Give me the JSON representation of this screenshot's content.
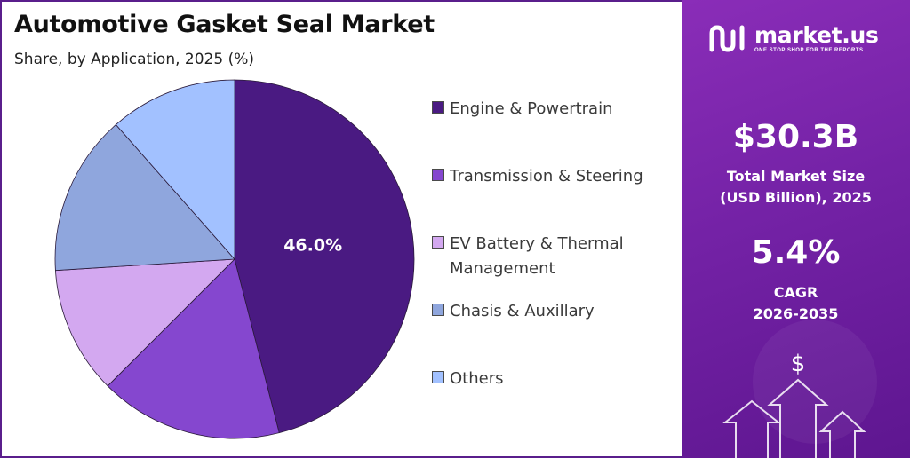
{
  "title": "Automotive Gasket Seal Market",
  "subtitle": "Share, by Application, 2025 (%)",
  "chart_data": {
    "type": "pie",
    "categories": [
      "Engine & Powertrain",
      "Transmission & Steering",
      "EV Battery & Thermal Management",
      "Chasis & Auxillary",
      "Others"
    ],
    "values": [
      46.0,
      16.5,
      11.5,
      14.5,
      11.5
    ],
    "data_labels": [
      "46.0%",
      "",
      "",
      "",
      ""
    ],
    "colors": [
      "#4a1a82",
      "#8547cf",
      "#d3a8f0",
      "#8fa6dd",
      "#a2c1ff"
    ],
    "legend_position": "right",
    "start_angle_deg": 0,
    "direction": "clockwise"
  },
  "legend": {
    "items": [
      {
        "label": "Engine & Powertrain",
        "color": "#4a1a82"
      },
      {
        "label": "Transmission & Steering",
        "color": "#8547cf"
      },
      {
        "label": "EV Battery & Thermal Management",
        "color": "#d3a8f0"
      },
      {
        "label": "Chasis & Auxillary",
        "color": "#8fa6dd"
      },
      {
        "label": "Others",
        "color": "#a2c1ff"
      }
    ]
  },
  "panel": {
    "brand_name": "market.us",
    "brand_tagline": "ONE STOP SHOP FOR THE REPORTS",
    "market_size_value": "$30.3B",
    "market_size_label_1": "Total Market Size",
    "market_size_label_2": "(USD Billion), 2025",
    "cagr_value": "5.4%",
    "cagr_label_1": "CAGR",
    "cagr_label_2": "2026-2035",
    "dollar_symbol": "$",
    "accent_color": "#7a24aa"
  }
}
